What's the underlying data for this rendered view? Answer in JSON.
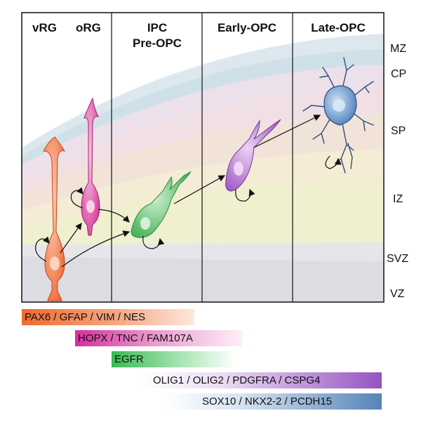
{
  "columns": [
    {
      "label": "vRG"
    },
    {
      "label": "oRG"
    },
    {
      "label": "IPC"
    },
    {
      "label": "Pre-OPC"
    },
    {
      "label": "Early-OPC"
    },
    {
      "label": "Late-OPC"
    }
  ],
  "zones": [
    "MZ",
    "CP",
    "SP",
    "IZ",
    "SVZ",
    "VZ"
  ],
  "markers": [
    {
      "text": "PAX6 / GFAP / VIM / NES",
      "color": "#f07a45"
    },
    {
      "text": "HOPX / TNC / FAM107A",
      "color": "#d93aa6"
    },
    {
      "text": "EGFR",
      "color": "#3fbf5a"
    },
    {
      "text": "OLIG1 / OLIG2 / PDGFRA / CSPG4",
      "color": "#9a5cc1"
    },
    {
      "text": "SOX10 / NKX2-2 / PCDH15",
      "color": "#5a88b8"
    }
  ],
  "colors": {
    "vRG": "#f26a3a",
    "oRG": "#d9479f",
    "IPC": "#4bb85c",
    "early_opc": "#a763c4",
    "late_opc": "#4e86c2"
  }
}
